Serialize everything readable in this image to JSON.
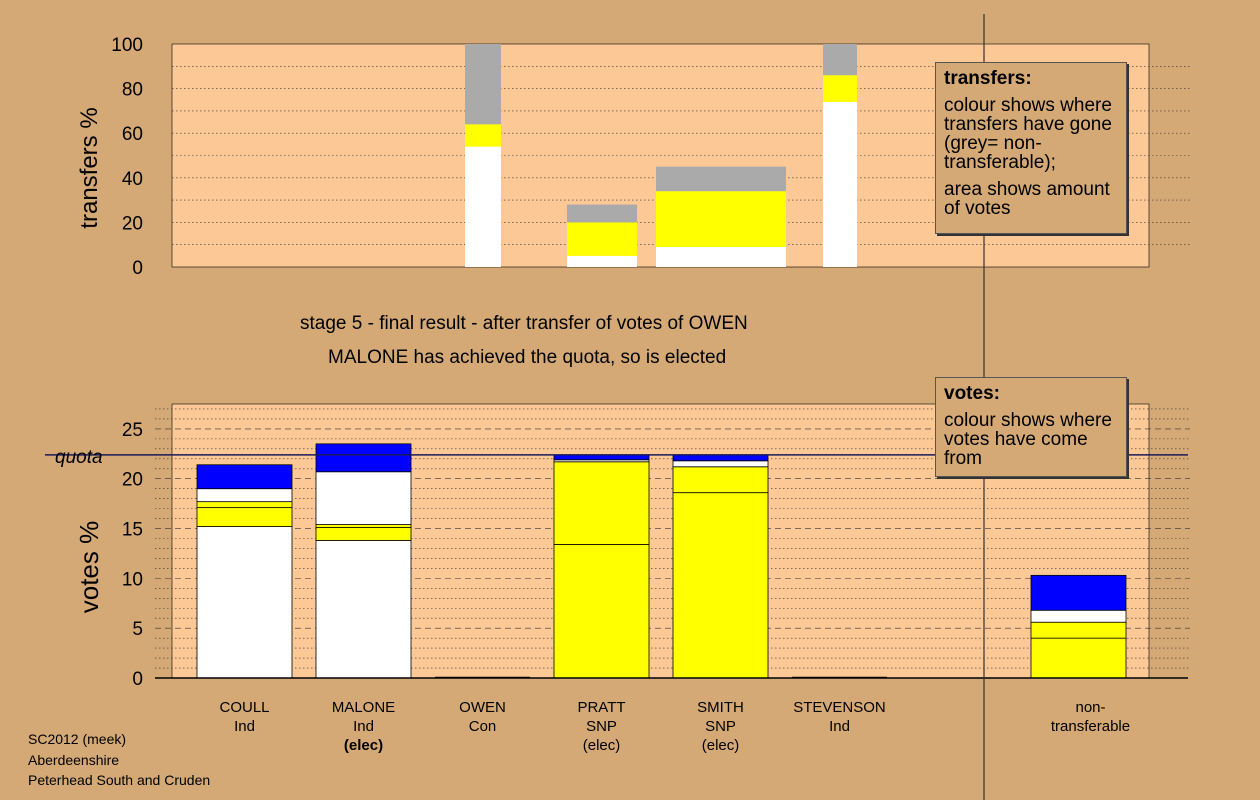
{
  "chart_data": [
    {
      "type": "bar",
      "ylabel": "transfers %",
      "ylim": [
        0,
        100
      ],
      "yticks": [
        0,
        20,
        40,
        60,
        80,
        100
      ],
      "bars": [
        {
          "segments": [
            {
              "color": "white",
              "value": 54
            },
            {
              "color": "yellow",
              "value": 10
            },
            {
              "color": "grey",
              "value": 36
            }
          ]
        },
        {
          "segments": [
            {
              "color": "white",
              "value": 5
            },
            {
              "color": "yellow",
              "value": 15
            },
            {
              "color": "grey",
              "value": 8
            }
          ]
        },
        {
          "segments": [
            {
              "color": "white",
              "value": 9
            },
            {
              "color": "yellow",
              "value": 25
            },
            {
              "color": "grey",
              "value": 11
            }
          ]
        },
        {
          "segments": [
            {
              "color": "white",
              "value": 74
            },
            {
              "color": "yellow",
              "value": 12
            },
            {
              "color": "grey",
              "value": 14
            }
          ]
        }
      ]
    },
    {
      "type": "bar",
      "ylabel": "votes %",
      "ylim": [
        0,
        27.5
      ],
      "yticks": [
        0,
        5,
        10,
        15,
        20,
        25
      ],
      "quota": 22.4,
      "quota_label": "quota",
      "categories": [
        {
          "name": "COULL",
          "party": "Ind",
          "status": ""
        },
        {
          "name": "MALONE",
          "party": "Ind",
          "status": "(elec)"
        },
        {
          "name": "OWEN",
          "party": "Con",
          "status": ""
        },
        {
          "name": "PRATT",
          "party": "SNP",
          "status": "(elec)"
        },
        {
          "name": "SMITH",
          "party": "SNP",
          "status": "(elec)"
        },
        {
          "name": "STEVENSON",
          "party": "Ind",
          "status": ""
        },
        {
          "name": "non-",
          "party": "transferable",
          "status": ""
        }
      ],
      "stacks": [
        [
          {
            "color": "white",
            "value": 15.2
          },
          {
            "color": "yellow",
            "value": 1.9
          },
          {
            "color": "yellow",
            "value": 0.6
          },
          {
            "color": "white",
            "value": 1.3
          },
          {
            "color": "blue",
            "value": 2.4
          }
        ],
        [
          {
            "color": "white",
            "value": 13.8
          },
          {
            "color": "yellow",
            "value": 1.3
          },
          {
            "color": "yellow",
            "value": 0.3
          },
          {
            "color": "white",
            "value": 5.3
          },
          {
            "color": "blue",
            "value": 2.8
          }
        ],
        [],
        [
          {
            "color": "yellow",
            "value": 13.4
          },
          {
            "color": "yellow",
            "value": 8.3
          },
          {
            "color": "white",
            "value": 0.2
          },
          {
            "color": "blue",
            "value": 0.5
          }
        ],
        [
          {
            "color": "yellow",
            "value": 18.6
          },
          {
            "color": "yellow",
            "value": 2.6
          },
          {
            "color": "white",
            "value": 0.6
          },
          {
            "color": "blue",
            "value": 0.6
          }
        ],
        [],
        [
          {
            "color": "yellow",
            "value": 4.0
          },
          {
            "color": "yellow",
            "value": 1.6
          },
          {
            "color": "white",
            "value": 1.2
          },
          {
            "color": "blue",
            "value": 3.5
          }
        ]
      ]
    }
  ],
  "colors": {
    "background": "#d4a976",
    "plot_bg": "#fbc896",
    "white": "#ffffff",
    "yellow": "#ffff00",
    "grey": "#aaaaaa",
    "blue": "#0000ff"
  },
  "captions": {
    "line1": "stage 5 - final result - after transfer of votes of OWEN",
    "line2": "MALONE has achieved the quota, so is elected"
  },
  "legend_transfers": {
    "title": "transfers:",
    "p1": "colour shows where transfers have gone (grey= non-transferable);",
    "p2": "area shows amount of votes"
  },
  "legend_votes": {
    "title": "votes:",
    "p1": "colour shows where votes have come from"
  },
  "footer": {
    "line1": "SC2012 (meek)",
    "line2": "Aberdeenshire",
    "line3": "Peterhead South and Cruden"
  }
}
